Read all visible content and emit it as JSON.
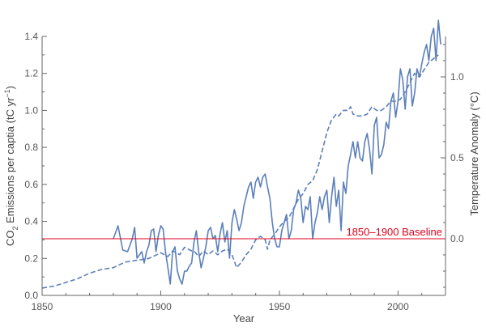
{
  "chart_data": {
    "type": "line",
    "title": "",
    "xlabel": "Year",
    "ylabel_left": {
      "prefix": "CO",
      "sub": "2",
      "mid": " Emissions per captia (tC yr",
      "sup": "−1",
      "suffix": ")"
    },
    "ylabel_right": "Temperature Anomaly (°C)",
    "xlim": [
      1850,
      2020
    ],
    "ylim_left": [
      0,
      1.4
    ],
    "ylim_right": [
      -0.35,
      1.25
    ],
    "xticks": [
      "1850",
      "1900",
      "1950",
      "2000"
    ],
    "xtick_values": [
      1850,
      1900,
      1950,
      2000
    ],
    "yticks_left": [
      "0.0",
      "0.2",
      "0.4",
      "0.6",
      "0.8",
      "1.0",
      "1.2",
      "1.4"
    ],
    "ytick_values_left": [
      0.0,
      0.2,
      0.4,
      0.6,
      0.8,
      1.0,
      1.2,
      1.4
    ],
    "yticks_right": [
      "0.0",
      "0.5",
      "1.0"
    ],
    "ytick_values_right": [
      0.0,
      0.5,
      1.0
    ],
    "baseline": {
      "label": "1850–1900 Baseline",
      "value_right": 0.0,
      "color": "#e0001b"
    },
    "series": [
      {
        "axis": "left",
        "style": "dashed",
        "color": "#5b7fba",
        "x": [
          1850,
          1855,
          1860,
          1865,
          1870,
          1875,
          1880,
          1885,
          1890,
          1895,
          1900,
          1903,
          1905,
          1908,
          1910,
          1913,
          1914,
          1916,
          1918,
          1920,
          1922,
          1924,
          1926,
          1928,
          1930,
          1932,
          1934,
          1936,
          1938,
          1940,
          1942,
          1944,
          1945,
          1946,
          1948,
          1950,
          1952,
          1954,
          1956,
          1958,
          1960,
          1962,
          1964,
          1966,
          1968,
          1970,
          1972,
          1974,
          1975,
          1977,
          1979,
          1980,
          1981,
          1983,
          1985,
          1987,
          1989,
          1991,
          1993,
          1995,
          1997,
          1999,
          2001,
          2003,
          2005,
          2007,
          2009,
          2011,
          2013,
          2015,
          2017
        ],
        "y": [
          0.04,
          0.05,
          0.07,
          0.09,
          0.12,
          0.14,
          0.15,
          0.18,
          0.19,
          0.2,
          0.23,
          0.21,
          0.24,
          0.22,
          0.26,
          0.24,
          0.24,
          0.21,
          0.24,
          0.22,
          0.24,
          0.22,
          0.24,
          0.25,
          0.22,
          0.15,
          0.18,
          0.22,
          0.25,
          0.3,
          0.32,
          0.3,
          0.25,
          0.3,
          0.33,
          0.37,
          0.4,
          0.42,
          0.47,
          0.52,
          0.55,
          0.6,
          0.62,
          0.68,
          0.78,
          0.88,
          0.95,
          0.98,
          0.97,
          1.0,
          1.0,
          1.02,
          0.98,
          0.97,
          0.97,
          0.98,
          1.02,
          1.0,
          1.0,
          1.02,
          1.05,
          1.05,
          1.06,
          1.1,
          1.15,
          1.2,
          1.18,
          1.22,
          1.26,
          1.28,
          1.3
        ]
      },
      {
        "axis": "right",
        "style": "solid",
        "color": "#5b7fba",
        "x": [
          1880,
          1882,
          1884,
          1886,
          1888,
          1889,
          1890,
          1891,
          1892,
          1893,
          1894,
          1895,
          1896,
          1897,
          1898,
          1899,
          1900,
          1901,
          1902,
          1903,
          1904,
          1905,
          1906,
          1907,
          1908,
          1909,
          1910,
          1911,
          1912,
          1913,
          1914,
          1915,
          1916,
          1917,
          1918,
          1919,
          1920,
          1921,
          1922,
          1923,
          1924,
          1925,
          1926,
          1927,
          1928,
          1929,
          1930,
          1931,
          1932,
          1933,
          1934,
          1935,
          1936,
          1937,
          1938,
          1939,
          1940,
          1941,
          1942,
          1943,
          1944,
          1945,
          1946,
          1947,
          1948,
          1949,
          1950,
          1951,
          1952,
          1953,
          1954,
          1955,
          1956,
          1957,
          1958,
          1959,
          1960,
          1961,
          1962,
          1963,
          1964,
          1965,
          1966,
          1967,
          1968,
          1969,
          1970,
          1971,
          1972,
          1973,
          1974,
          1975,
          1976,
          1977,
          1978,
          1979,
          1980,
          1981,
          1982,
          1983,
          1984,
          1985,
          1986,
          1987,
          1988,
          1989,
          1990,
          1991,
          1992,
          1993,
          1994,
          1995,
          1996,
          1997,
          1998,
          1999,
          2000,
          2001,
          2002,
          2003,
          2004,
          2005,
          2006,
          2007,
          2008,
          2009,
          2010,
          2011,
          2012,
          2013,
          2014,
          2015,
          2016,
          2017,
          2018
        ],
        "y": [
          0.0,
          0.08,
          -0.07,
          -0.08,
          0.0,
          0.07,
          -0.12,
          -0.1,
          -0.08,
          -0.15,
          -0.08,
          -0.04,
          0.05,
          0.06,
          -0.08,
          0.02,
          0.08,
          0.06,
          -0.08,
          -0.18,
          -0.28,
          -0.08,
          -0.05,
          -0.2,
          -0.25,
          -0.28,
          -0.2,
          -0.2,
          -0.17,
          -0.15,
          -0.02,
          0.05,
          -0.08,
          -0.18,
          -0.12,
          -0.05,
          0.05,
          0.07,
          0.0,
          0.02,
          -0.08,
          0.03,
          0.1,
          -0.02,
          0.05,
          -0.12,
          0.1,
          0.18,
          0.12,
          0.05,
          0.1,
          0.2,
          0.26,
          0.32,
          0.35,
          0.25,
          0.35,
          0.38,
          0.32,
          0.38,
          0.4,
          0.32,
          0.25,
          0.1,
          0.0,
          -0.05,
          -0.05,
          0.05,
          0.1,
          0.15,
          0.0,
          0.05,
          0.18,
          0.22,
          0.3,
          0.25,
          0.1,
          0.2,
          0.18,
          0.26,
          0.0,
          0.1,
          0.16,
          0.26,
          0.18,
          0.26,
          0.3,
          0.1,
          0.26,
          0.38,
          0.2,
          0.3,
          0.05,
          0.35,
          0.28,
          0.45,
          0.52,
          0.6,
          0.5,
          0.6,
          0.5,
          0.48,
          0.6,
          0.65,
          0.55,
          0.4,
          0.7,
          0.75,
          0.5,
          0.52,
          0.58,
          0.72,
          0.68,
          0.85,
          0.9,
          0.75,
          0.85,
          1.05,
          0.98,
          0.8,
          1.0,
          1.05,
          0.82,
          0.9,
          1.05,
          1.0,
          1.08,
          1.15,
          1.2,
          1.1,
          1.25,
          1.3,
          1.1,
          1.35,
          1.2
        ]
      }
    ]
  }
}
